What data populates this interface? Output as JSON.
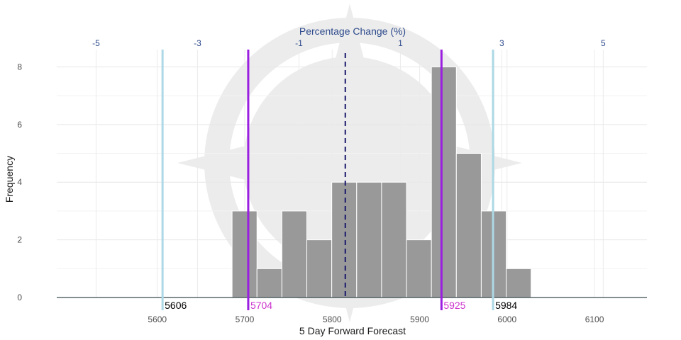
{
  "chart_data": {
    "type": "bar",
    "subtype": "histogram",
    "xlabel": "5 Day Forward Forecast",
    "ylabel": "Frequency",
    "secondary_xlabel": "Percentage Change (%)",
    "xlim": [
      5485,
      6160
    ],
    "ylim": [
      0,
      8.6
    ],
    "x_ticks": [
      5600,
      5700,
      5800,
      5900,
      6000,
      6100
    ],
    "y_ticks": [
      0,
      2,
      4,
      6,
      8
    ],
    "secondary_x_ticks": [
      {
        "label": "-5",
        "at": 5530
      },
      {
        "label": "-3",
        "at": 5646
      },
      {
        "label": "-1",
        "at": 5762
      },
      {
        "label": "1",
        "at": 5878
      },
      {
        "label": "3",
        "at": 5994
      },
      {
        "label": "5",
        "at": 6110
      }
    ],
    "bin_width": 28.5,
    "bins": [
      {
        "start": 5685.5,
        "count": 3
      },
      {
        "start": 5714.0,
        "count": 1
      },
      {
        "start": 5742.5,
        "count": 3
      },
      {
        "start": 5771.0,
        "count": 2
      },
      {
        "start": 5799.5,
        "count": 4
      },
      {
        "start": 5828.0,
        "count": 4
      },
      {
        "start": 5856.5,
        "count": 4
      },
      {
        "start": 5885.0,
        "count": 2
      },
      {
        "start": 5913.5,
        "count": 8
      },
      {
        "start": 5942.0,
        "count": 5
      },
      {
        "start": 5970.5,
        "count": 3
      },
      {
        "start": 5999.0,
        "count": 1
      }
    ],
    "reference_lines": [
      {
        "value": 5606,
        "label": "5606",
        "color": "#add8e6",
        "label_color": "#000000",
        "style": "solid"
      },
      {
        "value": 5704,
        "label": "5704",
        "color": "#9b1fe0",
        "label_color": "#cc33cc",
        "style": "solid"
      },
      {
        "value": 5925,
        "label": "5925",
        "color": "#9b1fe0",
        "label_color": "#cc33cc",
        "style": "solid"
      },
      {
        "value": 5984,
        "label": "5984",
        "color": "#add8e6",
        "label_color": "#000000",
        "style": "solid"
      },
      {
        "value": 5815,
        "label": "",
        "color": "#1a1a6e",
        "label_color": "#000000",
        "style": "dashed"
      }
    ],
    "baseline_color": "#3a4a4f",
    "bar_color": "#999999"
  }
}
